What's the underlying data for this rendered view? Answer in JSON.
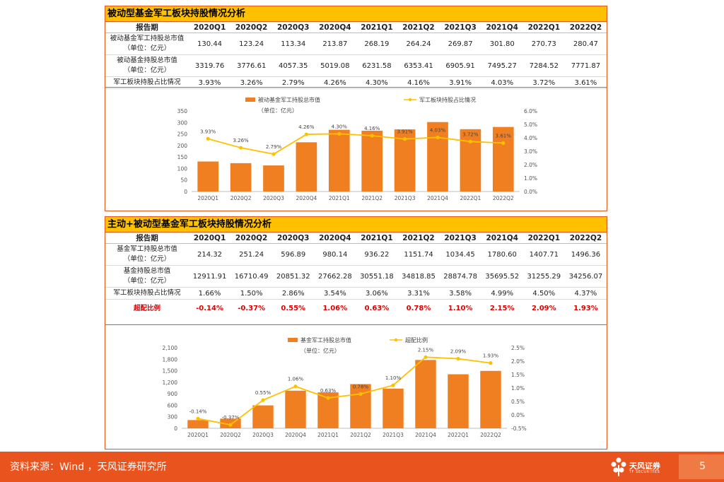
{
  "colors": {
    "bar": "#f07f22",
    "line": "#ffc000",
    "accent": "#e05a1e",
    "title_bg": "#ffc000",
    "footer_bg": "#e9531d",
    "highlight": "#e00000"
  },
  "periods": [
    "2020Q1",
    "2020Q2",
    "2020Q3",
    "2020Q4",
    "2021Q1",
    "2021Q2",
    "2021Q3",
    "2021Q4",
    "2022Q1",
    "2022Q2"
  ],
  "section1": {
    "title": "被动型基金军工板块持股情况分析",
    "header_label": "报告期",
    "rows": [
      {
        "label": [
          "被动基金军工持股总市值",
          "（单位：亿元）"
        ],
        "values": [
          "130.44",
          "123.24",
          "113.34",
          "213.87",
          "268.19",
          "264.24",
          "269.87",
          "301.80",
          "270.73",
          "280.47"
        ]
      },
      {
        "label": [
          "被动基金持股总市值",
          "（单位：亿元）"
        ],
        "values": [
          "3319.76",
          "3776.61",
          "4057.35",
          "5019.08",
          "6231.58",
          "6353.41",
          "6905.91",
          "7495.27",
          "7284.52",
          "7771.87"
        ]
      },
      {
        "label": [
          "军工板块持股占比情况"
        ],
        "values": [
          "3.93%",
          "3.26%",
          "2.79%",
          "4.26%",
          "4.30%",
          "4.16%",
          "3.91%",
          "4.03%",
          "3.72%",
          "3.61%"
        ]
      }
    ]
  },
  "section2": {
    "title": "主动+被动型基金军工板块持股情况分析",
    "header_label": "报告期",
    "rows": [
      {
        "label": [
          "基金军工持股总市值",
          "（单位：亿元）"
        ],
        "values": [
          "214.32",
          "251.24",
          "596.89",
          "980.14",
          "936.22",
          "1151.74",
          "1034.45",
          "1780.60",
          "1407.71",
          "1496.36"
        ]
      },
      {
        "label": [
          "基金持股总市值",
          "（单位：亿元）"
        ],
        "values": [
          "12911.91",
          "16710.49",
          "20851.32",
          "27662.28",
          "30551.18",
          "34818.85",
          "28874.78",
          "35695.52",
          "31255.29",
          "34256.07"
        ]
      },
      {
        "label": [
          "军工板块持股占比情况"
        ],
        "values": [
          "1.66%",
          "1.50%",
          "2.86%",
          "3.54%",
          "3.06%",
          "3.31%",
          "3.58%",
          "4.99%",
          "4.50%",
          "4.37%"
        ]
      },
      {
        "label": [
          "超配比例"
        ],
        "values": [
          "-0.14%",
          "-0.37%",
          "0.55%",
          "1.06%",
          "0.63%",
          "0.78%",
          "1.10%",
          "2.15%",
          "2.09%",
          "1.93%"
        ],
        "highlight": true
      }
    ]
  },
  "chart_data": [
    {
      "type": "bar+line",
      "categories": [
        "2020Q1",
        "2020Q2",
        "2020Q3",
        "2020Q4",
        "2021Q1",
        "2021Q2",
        "2021Q3",
        "2021Q4",
        "2022Q1",
        "2022Q2"
      ],
      "series": [
        {
          "name": "被动基金军工持股总市值",
          "axis": "left",
          "kind": "bar",
          "values": [
            130.44,
            123.24,
            113.34,
            213.87,
            268.19,
            264.24,
            269.87,
            301.8,
            270.73,
            280.47
          ]
        },
        {
          "name": "军工板块持股占比情况",
          "axis": "right",
          "kind": "line",
          "values": [
            3.93,
            3.26,
            2.79,
            4.26,
            4.3,
            4.16,
            3.91,
            4.03,
            3.72,
            3.61
          ]
        }
      ],
      "data_labels": [
        "3.93%",
        "3.26%",
        "2.79%",
        "4.26%",
        "4.30%",
        "4.16%",
        "3.91%",
        "4.03%",
        "3.72%",
        "3.61%"
      ],
      "legend": [
        "被动基金军工持股总市值",
        "军工板块持股占比情况"
      ],
      "legend_unit": "（单位：亿元）",
      "left_ticks": [
        "0",
        "50",
        "100",
        "150",
        "200",
        "250",
        "300",
        "350"
      ],
      "right_ticks": [
        "0.0%",
        "1.0%",
        "2.0%",
        "3.0%",
        "4.0%",
        "5.0%",
        "6.0%"
      ],
      "ylim_left": [
        0,
        350
      ],
      "ylim_right": [
        0,
        6
      ]
    },
    {
      "type": "bar+line",
      "categories": [
        "2020Q1",
        "2020Q2",
        "2020Q3",
        "2020Q4",
        "2021Q1",
        "2021Q2",
        "2021Q3",
        "2021Q4",
        "2022Q1",
        "2022Q2"
      ],
      "series": [
        {
          "name": "基金军工持股总市值",
          "axis": "left",
          "kind": "bar",
          "values": [
            214.32,
            251.24,
            596.89,
            980.14,
            936.22,
            1151.74,
            1034.45,
            1780.6,
            1407.71,
            1496.36
          ]
        },
        {
          "name": "超配比例",
          "axis": "right",
          "kind": "line",
          "values": [
            -0.14,
            -0.37,
            0.55,
            1.06,
            0.63,
            0.78,
            1.1,
            2.15,
            2.09,
            1.93
          ]
        }
      ],
      "data_labels": [
        "-0.14%",
        "-0.37%",
        "0.55%",
        "1.06%",
        "0.63%",
        "0.78%",
        "1.10%",
        "2.15%",
        "2.09%",
        "1.93%"
      ],
      "legend": [
        "基金军工持股总市值",
        "超配比例"
      ],
      "legend_unit": "（单位：亿元）",
      "left_ticks": [
        "0",
        "300",
        "600",
        "900",
        "1,200",
        "1,500",
        "1,800",
        "2,100"
      ],
      "right_ticks": [
        "-0.5%",
        "0.0%",
        "0.5%",
        "1.0%",
        "1.5%",
        "2.0%",
        "2.5%"
      ],
      "ylim_left": [
        0,
        2100
      ],
      "ylim_right": [
        -0.5,
        2.5
      ]
    }
  ],
  "footer": {
    "source": "资料来源：Wind ，天风证券研究所",
    "logo_text": "天风证券",
    "logo_sub": "TF SECURITIES",
    "page": "5"
  }
}
